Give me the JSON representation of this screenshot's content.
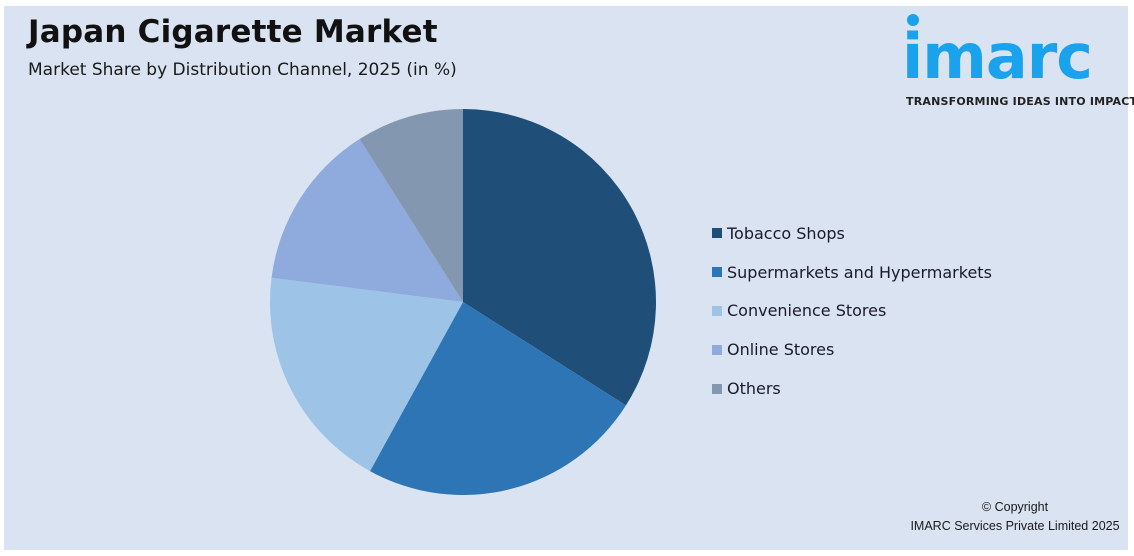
{
  "header": {
    "title": "Japan Cigarette Market",
    "subtitle": "Market Share by Distribution Channel, 2025 (in %)"
  },
  "logo": {
    "name": "imarc",
    "tagline": "TRANSFORMING IDEAS INTO IMPACT",
    "color": "#1aa3ec"
  },
  "legend": {
    "items": [
      {
        "label": "Tobacco Shops",
        "color": "#1f4e79"
      },
      {
        "label": "Supermarkets and Hypermarkets",
        "color": "#2e75b6"
      },
      {
        "label": "Convenience Stores",
        "color": "#9dc3e6"
      },
      {
        "label": "Online Stores",
        "color": "#8faadc"
      },
      {
        "label": "Others",
        "color": "#8497b0"
      }
    ]
  },
  "footer": {
    "copyright_line1": "© Copyright",
    "copyright_line2": "IMARC Services Private Limited 2025"
  },
  "chart_data": {
    "type": "pie",
    "title": "Japan Cigarette Market",
    "subtitle": "Market Share by Distribution Channel, 2025 (in %)",
    "categories": [
      "Tobacco Shops",
      "Supermarkets and Hypermarkets",
      "Convenience Stores",
      "Online Stores",
      "Others"
    ],
    "values": [
      34,
      24,
      19,
      14,
      9
    ],
    "colors": [
      "#1f4e79",
      "#2e75b6",
      "#9dc3e6",
      "#8faadc",
      "#8497b0"
    ],
    "start_angle_deg": 0,
    "direction": "clockwise",
    "legend_position": "right",
    "data_labels": false
  }
}
